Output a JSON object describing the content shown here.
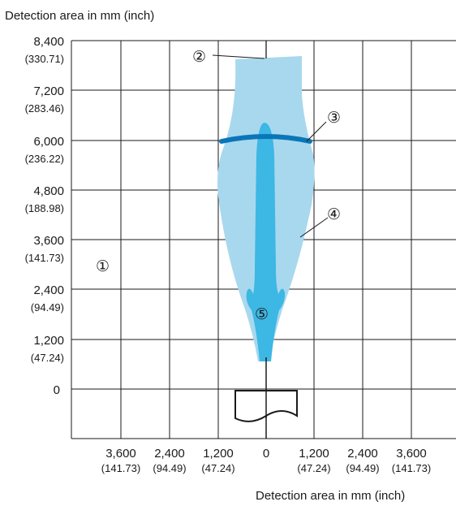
{
  "diagram": {
    "title_top": "Detection area in mm (inch)",
    "title_bottom": "Detection area in mm (inch)",
    "y_ticks": [
      {
        "value": 8400,
        "main": "8,400",
        "sub": "(330.71)"
      },
      {
        "value": 7200,
        "main": "7,200",
        "sub": "(283.46)"
      },
      {
        "value": 6000,
        "main": "6,000",
        "sub": "(236.22)"
      },
      {
        "value": 4800,
        "main": "4,800",
        "sub": "(188.98)"
      },
      {
        "value": 3600,
        "main": "3,600",
        "sub": "(141.73)"
      },
      {
        "value": 2400,
        "main": "2,400",
        "sub": "(94.49)"
      },
      {
        "value": 1200,
        "main": "1,200",
        "sub": "(47.24)"
      },
      {
        "value": 0,
        "main": "0",
        "sub": ""
      }
    ],
    "x_ticks": [
      {
        "value": -3600,
        "main": "3,600",
        "sub": "(141.73)"
      },
      {
        "value": -2400,
        "main": "2,400",
        "sub": "(94.49)"
      },
      {
        "value": -1200,
        "main": "1,200",
        "sub": "(47.24)"
      },
      {
        "value": 0,
        "main": "0",
        "sub": ""
      },
      {
        "value": 1200,
        "main": "1,200",
        "sub": "(47.24)"
      },
      {
        "value": 2400,
        "main": "2,400",
        "sub": "(94.49)"
      },
      {
        "value": 3600,
        "main": "3,600",
        "sub": "(141.73)"
      }
    ],
    "markers": {
      "m1": "①",
      "m2": "②",
      "m3": "③",
      "m4": "④",
      "m5": "⑤"
    },
    "colors": {
      "outer_field": "#a8d8ee",
      "inner_field": "#3db7e4",
      "arc": "#0a76b8",
      "line": "#1a1a1a"
    }
  }
}
